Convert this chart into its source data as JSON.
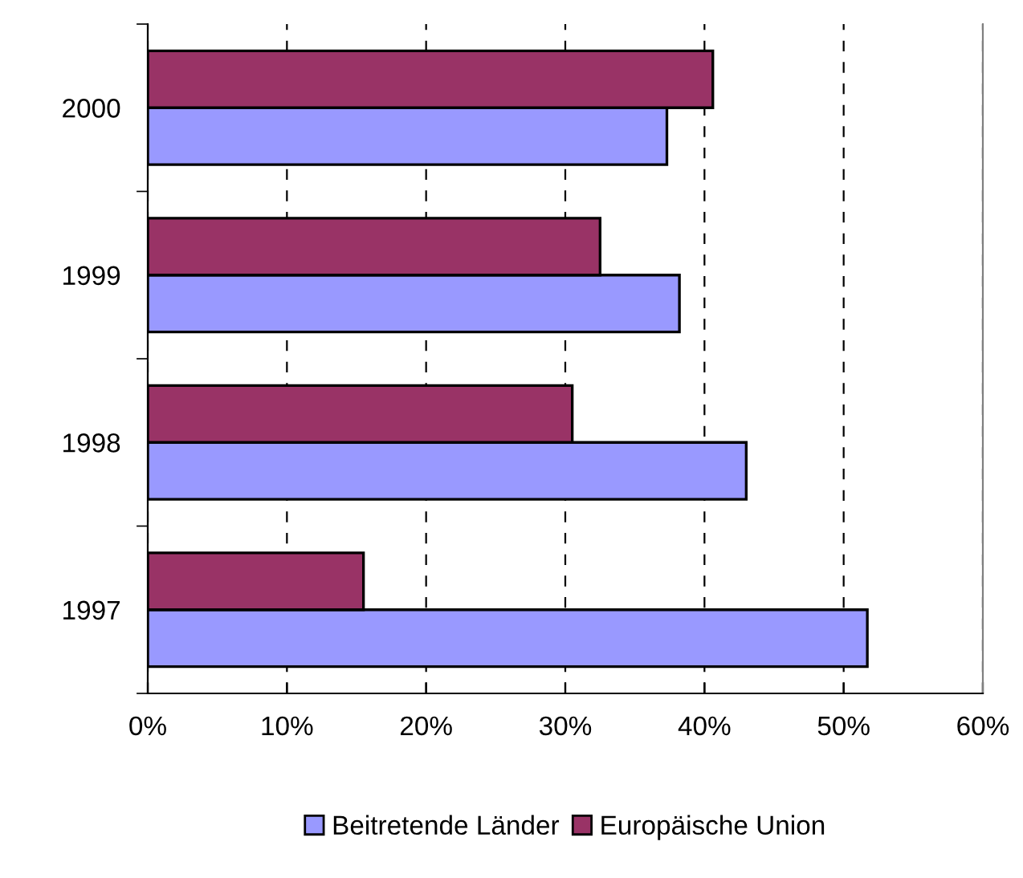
{
  "chart_data": {
    "type": "bar",
    "orientation": "horizontal",
    "categories": [
      "2000",
      "1999",
      "1998",
      "1997"
    ],
    "series": [
      {
        "name": "Beitretende Länder",
        "color": "#9999ff",
        "values": [
          37.3,
          38.2,
          43.0,
          51.7
        ]
      },
      {
        "name": "Europäische Union",
        "color": "#993366",
        "values": [
          40.6,
          32.5,
          30.5,
          15.5
        ]
      }
    ],
    "xlim": [
      0,
      60
    ],
    "xticks": [
      {
        "value": 0,
        "label": "0%"
      },
      {
        "value": 10,
        "label": "10%"
      },
      {
        "value": 20,
        "label": "20%"
      },
      {
        "value": 30,
        "label": "30%"
      },
      {
        "value": 40,
        "label": "40%"
      },
      {
        "value": 50,
        "label": "50%"
      },
      {
        "value": 60,
        "label": "60%"
      }
    ],
    "grid": "x",
    "legend": "bottom"
  }
}
